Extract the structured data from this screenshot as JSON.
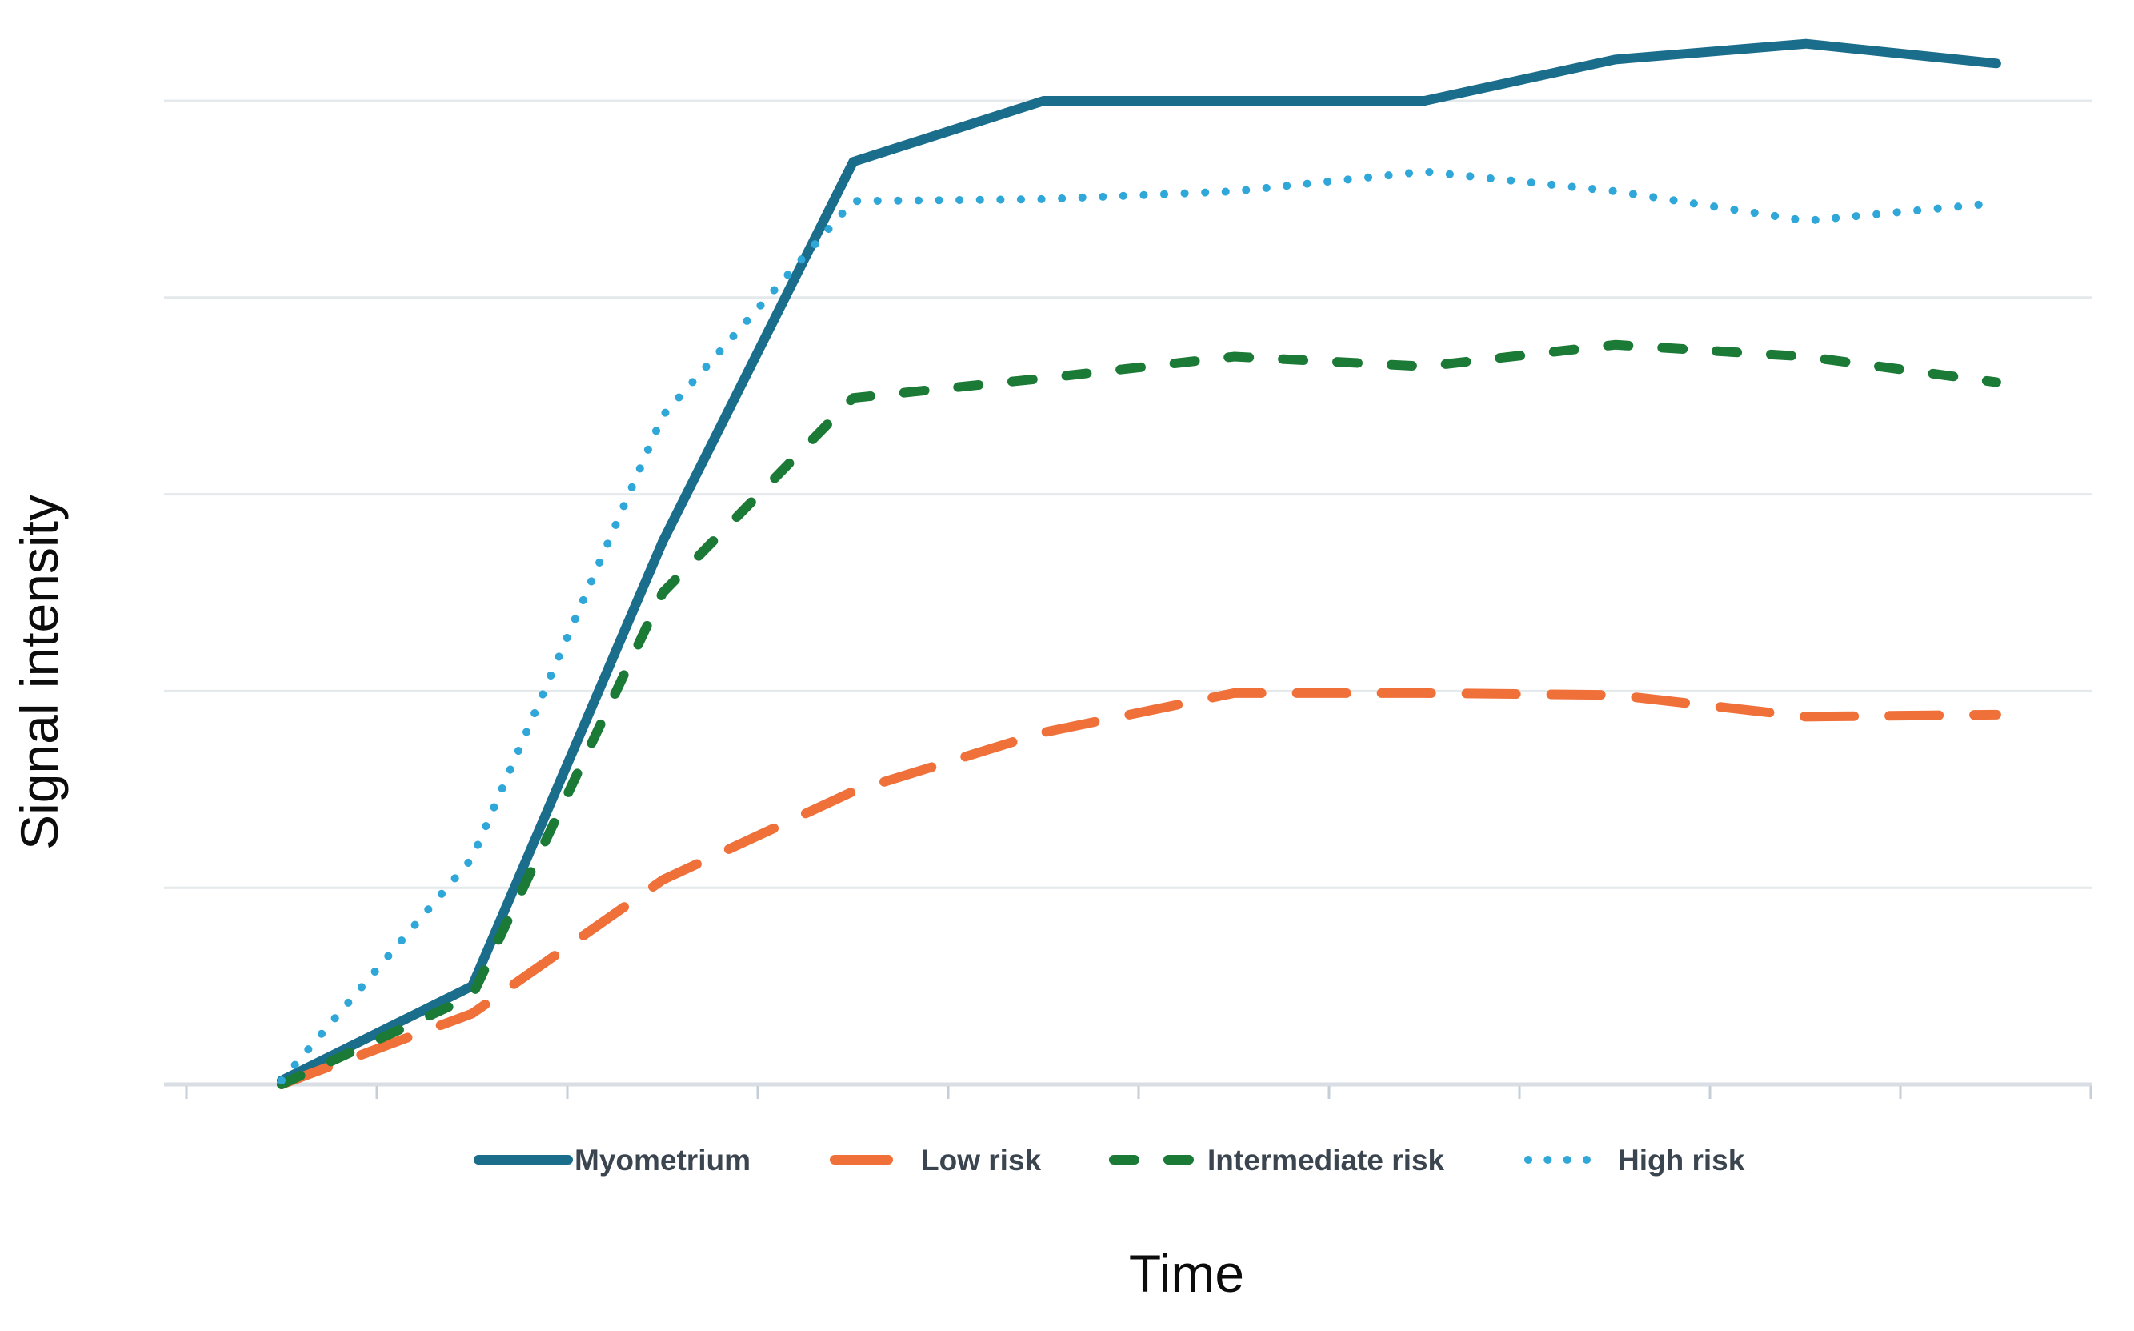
{
  "chart_data": {
    "type": "line",
    "title": "",
    "xlabel": "Time",
    "ylabel": "Signal intensity",
    "x": [
      1,
      2,
      3,
      4,
      5,
      6,
      7,
      8,
      9,
      10
    ],
    "x_tick_labels": [],
    "y_tick_labels": [],
    "ylim": [
      0,
      5.66
    ],
    "gridlines_y": [
      1,
      2,
      3,
      4,
      5
    ],
    "grid": "horizontal-only",
    "legend_position": "bottom",
    "series": [
      {
        "name": "Myometrium",
        "style": "solid",
        "color": "#1b6d8c",
        "values": [
          0.02,
          0.5,
          2.76,
          4.69,
          5.0,
          5.0,
          5.0,
          5.21,
          5.29,
          5.19
        ]
      },
      {
        "name": "Low risk",
        "style": "long-dash",
        "color": "#f0703a",
        "values": [
          0.0,
          0.36,
          1.04,
          1.49,
          1.79,
          1.99,
          1.99,
          1.98,
          1.87,
          1.88
        ]
      },
      {
        "name": "Intermediate risk",
        "style": "dash",
        "color": "#1b7a36",
        "values": [
          0.0,
          0.45,
          2.5,
          3.49,
          3.59,
          3.7,
          3.65,
          3.76,
          3.7,
          3.57
        ]
      },
      {
        "name": "High risk",
        "style": "dotted",
        "color": "#2fa7d9",
        "values": [
          0.02,
          1.15,
          3.4,
          4.49,
          4.5,
          4.54,
          4.64,
          4.54,
          4.39,
          4.48
        ]
      }
    ]
  },
  "labels": {
    "x_axis": "Time",
    "y_axis": "Signal intensity"
  },
  "colors": {
    "gridline": "#e4e9ec",
    "axis_line": "#d8dee3",
    "tick": "#c6cfd7",
    "legend_text": "#3b4550",
    "axis_label_text": "#0c0c0c",
    "background": "#ffffff"
  }
}
